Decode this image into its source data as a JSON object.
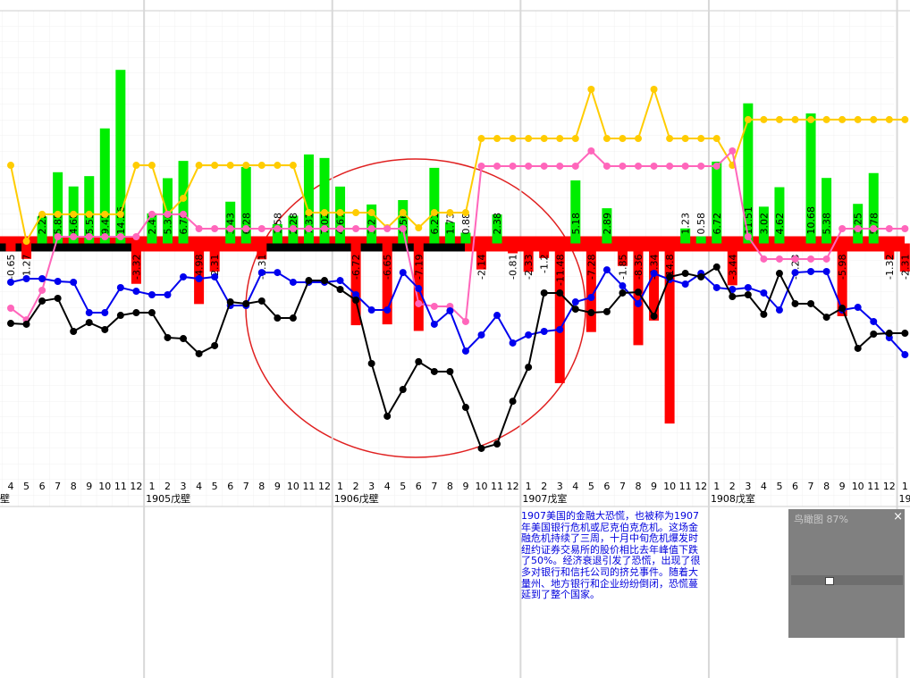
{
  "chart_data": {
    "type": "combo",
    "categories": [
      "4",
      "5",
      "6",
      "7",
      "8",
      "9",
      "10",
      "11",
      "12",
      "1",
      "2",
      "3",
      "4",
      "5",
      "6",
      "7",
      "8",
      "9",
      "10",
      "11",
      "12",
      "1",
      "2",
      "3",
      "4",
      "5",
      "6",
      "7",
      "8",
      "9",
      "10",
      "11",
      "12",
      "1",
      "2",
      "3",
      "4",
      "5",
      "6",
      "7",
      "8",
      "9",
      "10",
      "11",
      "12",
      "1",
      "2",
      "3",
      "4",
      "5",
      "6",
      "7",
      "8",
      "9",
      "10",
      "11",
      "12",
      "1"
    ],
    "year_labels": [
      "壁",
      "1905戊壁",
      "1906戊壁",
      "1907戊室",
      "1908戊室",
      "19"
    ],
    "ylim": [
      -20,
      20
    ],
    "series": [
      {
        "type": "bar",
        "positive_color": "#00ee00",
        "negative_color": "#ff0000",
        "values": [
          -0.65,
          -1.27,
          2.22,
          5.85,
          4.68,
          5.53,
          9.45,
          14.26,
          -3.32,
          2.47,
          5.36,
          6.78,
          -4.98,
          -2.31,
          3.43,
          6.28,
          -1.31,
          1.58,
          2.28,
          7.31,
          7.02,
          4.67,
          -6.72,
          3.2,
          -6.65,
          3.56,
          -7.19,
          6.21,
          1.73,
          0.88,
          -2.14,
          2.38,
          -0.81,
          -2.33,
          -1.2,
          -11.48,
          5.18,
          -7.28,
          2.89,
          -1.85,
          -8.36,
          -6.34,
          -14.8,
          1.23,
          0.58,
          6.72,
          -3.44,
          11.51,
          3.02,
          4.62,
          -0.23,
          10.68,
          5.38,
          -5.98,
          3.25,
          5.78,
          -1.32,
          -2.31
        ]
      },
      {
        "type": "line",
        "color": "#ffcc00",
        "values": [
          6.42,
          0.18,
          2.39,
          2.39,
          2.39,
          2.39,
          2.39,
          2.39,
          6.42,
          6.42,
          2.39,
          3.71,
          6.42,
          6.42,
          6.42,
          6.42,
          6.42,
          6.42,
          6.42,
          2.53,
          2.53,
          2.53,
          2.53,
          2.53,
          1.28,
          2.53,
          1.28,
          2.53,
          2.53,
          2.53,
          8.62,
          8.62,
          8.62,
          8.62,
          8.62,
          8.62,
          8.62,
          12.66,
          8.62,
          8.62,
          8.62,
          12.66,
          8.62,
          8.62,
          8.62,
          8.62,
          6.42,
          10.17,
          10.17,
          10.17,
          10.17,
          10.17,
          10.17,
          10.17,
          10.17,
          10.17,
          10.17,
          10.17
        ]
      },
      {
        "type": "line",
        "color": "#ff66bb",
        "values": [
          -5.32,
          -6.28,
          -3.85,
          0.55,
          0.55,
          0.55,
          0.55,
          0.55,
          0.55,
          2.39,
          2.39,
          2.39,
          1.21,
          1.21,
          1.21,
          1.21,
          1.21,
          1.21,
          1.21,
          1.21,
          1.21,
          1.21,
          1.21,
          1.21,
          1.21,
          1.21,
          -4.95,
          -5.17,
          -5.17,
          -6.42,
          6.35,
          6.35,
          6.35,
          6.35,
          6.35,
          6.35,
          6.35,
          7.6,
          6.35,
          6.35,
          6.35,
          6.35,
          6.35,
          6.35,
          6.35,
          6.35,
          7.6,
          0.55,
          -1.28,
          -1.28,
          -1.28,
          -1.28,
          -1.28,
          1.21,
          1.21,
          1.21,
          1.21,
          1.21
        ]
      },
      {
        "type": "line",
        "color": "#0000ee",
        "values": [
          -3.19,
          -2.9,
          -2.9,
          -3.12,
          -3.19,
          -5.69,
          -5.69,
          -3.63,
          -3.93,
          -4.22,
          -4.22,
          -2.75,
          -2.9,
          -2.75,
          -5.1,
          -5.1,
          -2.39,
          -2.39,
          -3.19,
          -3.19,
          -3.19,
          -3.05,
          -4.22,
          -5.47,
          -5.47,
          -2.39,
          -3.71,
          -6.64,
          -5.54,
          -8.84,
          -7.52,
          -5.91,
          -8.18,
          -7.52,
          -7.23,
          -7.08,
          -4.81,
          -4.44,
          -2.17,
          -3.49,
          -4.95,
          -2.46,
          -2.97,
          -3.34,
          -2.46,
          -3.63,
          -3.78,
          -3.63,
          -4.07,
          -5.47,
          -2.39,
          -2.31,
          -2.31,
          -5.47,
          -5.25,
          -6.42,
          -7.74,
          -9.14
        ]
      },
      {
        "type": "line",
        "color": "#000000",
        "values": [
          -6.57,
          -6.64,
          -4.73,
          -4.51,
          -7.23,
          -6.5,
          -7.08,
          -5.91,
          -5.69,
          -5.69,
          -7.74,
          -7.82,
          -9.06,
          -8.4,
          -4.81,
          -4.95,
          -4.73,
          -6.13,
          -6.13,
          -3.05,
          -3.05,
          -3.78,
          -4.66,
          -9.87,
          -14.2,
          -12.0,
          -9.72,
          -10.53,
          -10.53,
          -13.47,
          -16.84,
          -16.48,
          -12.97,
          -10.17,
          -4.07,
          -4.07,
          -5.4,
          -5.69,
          -5.61,
          -4.07,
          -4.0,
          -5.98,
          -2.75,
          -2.46,
          -2.75,
          -1.94,
          -4.37,
          -4.22,
          -5.83,
          -2.46,
          -4.95,
          -4.95,
          -6.06,
          -5.32,
          -8.62,
          -7.45,
          -7.38,
          -7.38
        ]
      }
    ],
    "annotation": "1907美国的金融大恐慌，也被称为1907年美国银行危机或尼克伯克危机。这场金融危机持续了三周，十月中旬危机爆发时纽约证券交易所的股价相比去年峰值下跌了50%。经济衰退引发了恐慌，出现了很多对银行和信托公司的挤兑事件。随着大量州、地方银行和企业纷纷倒闭，恐慌蔓延到了整个国家。"
  },
  "overview_panel": {
    "title": "鸟瞰图 87%",
    "close": "×"
  }
}
